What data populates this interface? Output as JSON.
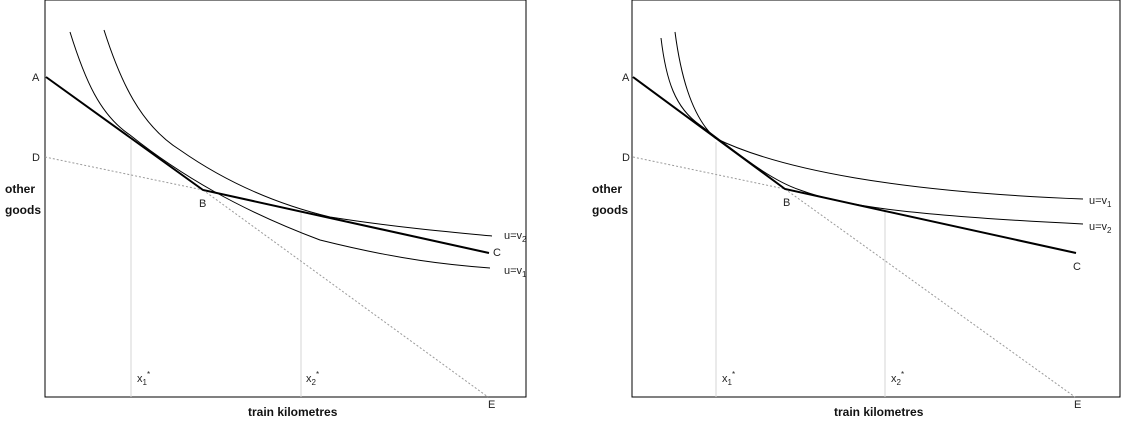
{
  "charts": [
    {
      "xlabel": "train kilometres",
      "ylabel_line1": "other",
      "ylabel_line2": "goods",
      "points": {
        "A": "A",
        "B": "B",
        "C": "C",
        "D": "D",
        "E": "E"
      },
      "x1_base": "x",
      "x1_sub": "1",
      "x1_sup": "*",
      "x2_base": "x",
      "x2_sub": "2",
      "x2_sup": "*",
      "curve_top_base": "u=v",
      "curve_top_sub": "2",
      "curve_bottom_base": "u=v",
      "curve_bottom_sub": "1"
    },
    {
      "xlabel": "train kilometres",
      "ylabel_line1": "other",
      "ylabel_line2": "goods",
      "points": {
        "A": "A",
        "B": "B",
        "C": "C",
        "D": "D",
        "E": "E"
      },
      "x1_base": "x",
      "x1_sub": "1",
      "x1_sup": "*",
      "x2_base": "x",
      "x2_sub": "2",
      "x2_sup": "*",
      "curve_top_base": "u=v",
      "curve_top_sub": "1",
      "curve_bottom_base": "u=v",
      "curve_bottom_sub": "2"
    }
  ],
  "chart_data": [
    {
      "type": "line",
      "xlim": [
        0,
        10
      ],
      "ylim": [
        0,
        10
      ],
      "series": [
        {
          "name": "A–B–C",
          "style": "solid-bold",
          "points": [
            [
              0,
              8.0
            ],
            [
              3.6,
              5.2
            ],
            [
              10,
              3.4
            ]
          ]
        },
        {
          "name": "D–B",
          "style": "dotted",
          "points": [
            [
              0,
              6.2
            ],
            [
              3.6,
              5.2
            ]
          ]
        },
        {
          "name": "B–E",
          "style": "dotted",
          "points": [
            [
              3.6,
              5.2
            ],
            [
              10,
              0
            ]
          ]
        },
        {
          "name": "u=v2",
          "style": "solid",
          "points": [
            [
              1.4,
              9.7
            ],
            [
              2.0,
              7.5
            ],
            [
              3.0,
              6.2
            ],
            [
              4.6,
              5.0
            ],
            [
              6.0,
              4.55
            ],
            [
              8.0,
              4.15
            ],
            [
              10.3,
              3.85
            ]
          ]
        },
        {
          "name": "u=v1",
          "style": "solid",
          "points": [
            [
              0.6,
              9.7
            ],
            [
              1.4,
              7.0
            ],
            [
              2.0,
              6.4
            ],
            [
              3.6,
              5.4
            ],
            [
              5.0,
              4.45
            ],
            [
              7.0,
              3.75
            ],
            [
              10.3,
              3.2
            ]
          ]
        }
      ],
      "reference_lines_x": [
        2.0,
        5.9
      ]
    },
    {
      "type": "line",
      "xlim": [
        0,
        10
      ],
      "ylim": [
        0,
        10
      ],
      "series": [
        {
          "name": "A–B–C",
          "style": "solid-bold",
          "points": [
            [
              0,
              8.0
            ],
            [
              3.1,
              5.3
            ],
            [
              10,
              3.5
            ]
          ]
        },
        {
          "name": "D–B",
          "style": "dotted",
          "points": [
            [
              0,
              6.2
            ],
            [
              3.1,
              5.3
            ]
          ]
        },
        {
          "name": "B–E",
          "style": "dotted",
          "points": [
            [
              3.1,
              5.3
            ],
            [
              10,
              0
            ]
          ]
        },
        {
          "name": "u=v1",
          "style": "solid",
          "points": [
            [
              0.6,
              9.7
            ],
            [
              0.9,
              7.5
            ],
            [
              1.5,
              6.4
            ],
            [
              3.0,
              5.8
            ],
            [
              6.0,
              5.15
            ],
            [
              10.1,
              4.9
            ]
          ]
        },
        {
          "name": "u=v2",
          "style": "solid",
          "points": [
            [
              0.4,
              9.7
            ],
            [
              0.7,
              7.6
            ],
            [
              1.4,
              6.5
            ],
            [
              3.1,
              5.3
            ],
            [
              4.2,
              4.95
            ],
            [
              7.0,
              4.5
            ],
            [
              10.1,
              4.2
            ]
          ]
        }
      ],
      "reference_lines_x": [
        1.4,
        4.4
      ]
    }
  ]
}
